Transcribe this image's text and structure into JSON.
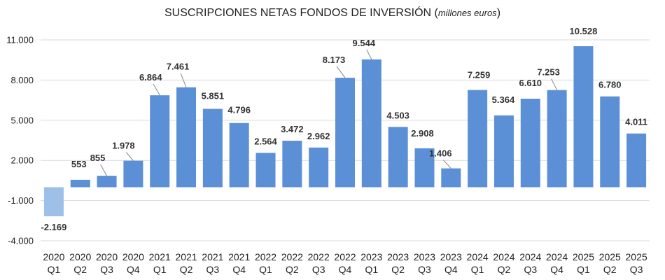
{
  "chart_data": {
    "type": "bar",
    "title": "SUSCRIPCIONES NETAS FONDOS DE INVERSIÓN",
    "subtitle": "millones euros",
    "xlabel": "",
    "ylabel": "",
    "ylim": [
      -4000,
      11000
    ],
    "yticks": [
      11000,
      8000,
      5000,
      2000,
      -1000,
      -4000
    ],
    "ytick_labels": [
      "11.000",
      "8.000",
      "5.000",
      "2.000",
      "-1.000",
      "-4.000"
    ],
    "grid": true,
    "categories": [
      {
        "year": "2020",
        "quarter": "Q1"
      },
      {
        "year": "2020",
        "quarter": "Q2"
      },
      {
        "year": "2020",
        "quarter": "Q3"
      },
      {
        "year": "2020",
        "quarter": "Q4"
      },
      {
        "year": "2021",
        "quarter": "Q1"
      },
      {
        "year": "2021",
        "quarter": "Q2"
      },
      {
        "year": "2021",
        "quarter": "Q3"
      },
      {
        "year": "2021",
        "quarter": "Q4"
      },
      {
        "year": "2022",
        "quarter": "Q1"
      },
      {
        "year": "2022",
        "quarter": "Q2"
      },
      {
        "year": "2022",
        "quarter": "Q3"
      },
      {
        "year": "2022",
        "quarter": "Q4"
      },
      {
        "year": "2023",
        "quarter": "Q1"
      },
      {
        "year": "2023",
        "quarter": "Q2"
      },
      {
        "year": "2023",
        "quarter": "Q3"
      },
      {
        "year": "2023",
        "quarter": "Q4"
      },
      {
        "year": "2024",
        "quarter": "Q1"
      },
      {
        "year": "2024",
        "quarter": "Q2"
      },
      {
        "year": "2024",
        "quarter": "Q3"
      },
      {
        "year": "2024",
        "quarter": "Q4"
      },
      {
        "year": "2025",
        "quarter": "Q1"
      },
      {
        "year": "2025",
        "quarter": "Q2"
      },
      {
        "year": "2025",
        "quarter": "Q3"
      }
    ],
    "values": [
      -2169,
      553,
      855,
      1978,
      6864,
      7461,
      5851,
      4796,
      2564,
      3472,
      2962,
      8173,
      9544,
      4503,
      2908,
      1406,
      7259,
      5364,
      6610,
      7253,
      10528,
      6780,
      4011
    ],
    "value_labels": [
      "-2.169",
      "553",
      "855",
      "1.978",
      "6.864",
      "7.461",
      "5.851",
      "4.796",
      "2.564",
      "3.472",
      "2.962",
      "8.173",
      "9.544",
      "4.503",
      "2.908",
      "1.406",
      "7.259",
      "5.364",
      "6.610",
      "7.253",
      "10.528",
      "6.780",
      "4.011"
    ],
    "colors": {
      "positive": "#5b8fd6",
      "negative": "#9dbfe8",
      "grid": "#d9d9d9",
      "leader": "#888888"
    }
  }
}
